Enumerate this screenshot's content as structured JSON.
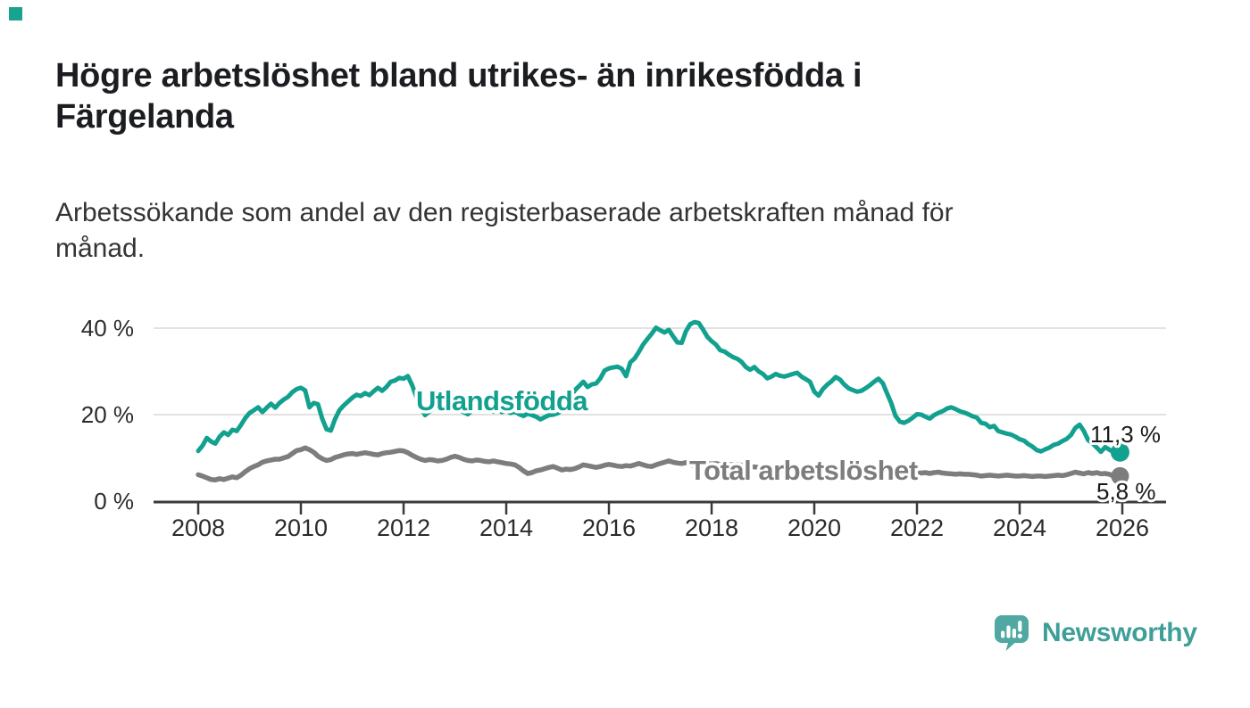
{
  "corner_mark": {
    "color": "#17a38e"
  },
  "title": {
    "text": "Högre arbetslöshet bland utrikes- än inrikesfödda i Färgelanda",
    "line1": "Högre arbetslöshet bland utrikes- än inrikesfödda i",
    "line2": "Färgelanda"
  },
  "subtitle": {
    "text": "Arbetssökande som andel av den registerbaserade arbetskraften månad för månad.",
    "line1": "Arbetssökande som andel av den registerbaserade arbetskraften månad för",
    "line2": "månad."
  },
  "footer": {
    "logo_text": "Newsworthy",
    "logo_color": "#3f9f98",
    "logo_icon": "newsworthy-speech-bubble-bar-chart-icon",
    "icon_color": "#4fa8a1"
  },
  "chart_data": {
    "type": "line",
    "title": "Högre arbetslöshet bland utrikes- än inrikesfödda i Färgelanda",
    "subtitle": "Arbetssökande som andel av den registerbaserade arbetskraften månad för månad.",
    "grid": "horizontal",
    "legend_position": "inline-labels",
    "x": {
      "start_year": 2008,
      "step_months": 1,
      "range": [
        2007.1,
        2026.8
      ],
      "tick_years": [
        2008,
        2010,
        2012,
        2014,
        2016,
        2018,
        2020,
        2022,
        2024,
        2026
      ],
      "tick_labels": [
        "2008",
        "2010",
        "2012",
        "2014",
        "2016",
        "2018",
        "2020",
        "2022",
        "2024",
        "2026"
      ]
    },
    "y": {
      "unit": "%",
      "range": [
        0,
        43
      ],
      "ticks": [
        {
          "value": 0,
          "label": "0 %"
        },
        {
          "value": 20,
          "label": "20 %"
        },
        {
          "value": 40,
          "label": "40 %"
        }
      ],
      "gridline_color": "#d9d9d9",
      "axis_color": "#3a3a3a"
    },
    "series": [
      {
        "name": "Utlandsfödda",
        "color": "#12a08f",
        "end_label": "11,3 %",
        "end_value": 11.3,
        "values": [
          11.6,
          12.8,
          14.6,
          13.8,
          13.3,
          14.9,
          15.9,
          15.3,
          16.5,
          16.2,
          17.6,
          19.2,
          20.4,
          21.0,
          21.7,
          20.6,
          21.6,
          22.5,
          21.6,
          22.7,
          23.5,
          24.1,
          25.2,
          25.9,
          26.2,
          25.6,
          21.7,
          22.7,
          22.4,
          19.0,
          16.6,
          16.3,
          19.0,
          21.0,
          22.1,
          23.0,
          23.9,
          24.6,
          24.3,
          25.0,
          24.5,
          25.4,
          26.2,
          25.5,
          26.4,
          27.6,
          27.9,
          28.5,
          28.3,
          28.9,
          26.8,
          24.1,
          21.8,
          19.9,
          20.7,
          21.4,
          21.9,
          21.5,
          21.8,
          22.1,
          21.7,
          21.2,
          20.6,
          20.1,
          20.9,
          21.3,
          21.0,
          21.4,
          21.1,
          20.7,
          21.0,
          20.6,
          20.9,
          20.4,
          20.7,
          20.1,
          19.7,
          20.2,
          19.9,
          19.5,
          18.9,
          19.4,
          19.9,
          20.0,
          20.3,
          20.9,
          21.8,
          23.8,
          25.6,
          26.6,
          27.6,
          26.4,
          27.0,
          27.2,
          28.4,
          30.2,
          30.7,
          30.9,
          31.1,
          30.6,
          28.9,
          32.1,
          33.0,
          34.5,
          36.2,
          37.5,
          38.7,
          40.1,
          39.5,
          39.0,
          39.6,
          38.1,
          36.7,
          36.6,
          39.3,
          40.9,
          41.4,
          41.2,
          39.7,
          38.0,
          37.0,
          36.2,
          34.9,
          34.6,
          33.9,
          33.3,
          32.9,
          32.2,
          31.0,
          30.4,
          31.0,
          30.0,
          29.4,
          28.4,
          28.8,
          29.4,
          29.0,
          28.8,
          29.1,
          29.4,
          29.7,
          28.8,
          28.2,
          27.6,
          25.3,
          24.4,
          25.9,
          26.9,
          27.7,
          28.7,
          28.1,
          27.0,
          26.1,
          25.7,
          25.3,
          25.5,
          26.1,
          26.8,
          27.6,
          28.3,
          27.3,
          24.9,
          22.6,
          19.7,
          18.4,
          18.1,
          18.6,
          19.3,
          20.1,
          20.0,
          19.5,
          19.1,
          19.9,
          20.4,
          20.8,
          21.4,
          21.7,
          21.3,
          20.8,
          20.5,
          20.1,
          19.6,
          19.3,
          18.1,
          17.9,
          17.1,
          17.4,
          16.2,
          15.9,
          15.6,
          15.4,
          14.9,
          14.3,
          14.0,
          13.2,
          12.6,
          11.8,
          11.5,
          12.0,
          12.4,
          13.0,
          13.3,
          13.9,
          14.4,
          15.3,
          16.9,
          17.7,
          16.2,
          14.1,
          13.4,
          12.4,
          11.4,
          12.5,
          11.9,
          11.3
        ]
      },
      {
        "name": "Total arbetslöshet",
        "color": "#7d7d7d",
        "end_label": "5,8 %",
        "end_value": 5.8,
        "values": [
          6.1,
          5.8,
          5.4,
          5.0,
          4.9,
          5.2,
          5.0,
          5.3,
          5.6,
          5.4,
          6.0,
          6.8,
          7.5,
          8.0,
          8.4,
          9.0,
          9.3,
          9.5,
          9.7,
          9.7,
          10.0,
          10.3,
          11.0,
          11.7,
          11.9,
          12.3,
          11.9,
          11.3,
          10.4,
          9.8,
          9.4,
          9.6,
          10.1,
          10.4,
          10.7,
          10.9,
          11.0,
          10.8,
          11.0,
          11.2,
          11.0,
          10.8,
          10.7,
          11.0,
          11.2,
          11.3,
          11.5,
          11.7,
          11.6,
          11.2,
          10.6,
          10.1,
          9.7,
          9.4,
          9.6,
          9.5,
          9.3,
          9.4,
          9.7,
          10.1,
          10.4,
          10.1,
          9.7,
          9.4,
          9.3,
          9.5,
          9.4,
          9.2,
          9.1,
          9.3,
          9.1,
          8.9,
          8.7,
          8.6,
          8.4,
          7.8,
          7.0,
          6.4,
          6.6,
          7.0,
          7.2,
          7.5,
          7.8,
          8.0,
          7.6,
          7.2,
          7.4,
          7.3,
          7.5,
          7.9,
          8.4,
          8.2,
          8.0,
          7.8,
          8.0,
          8.3,
          8.5,
          8.3,
          8.1,
          8.0,
          8.2,
          8.1,
          8.4,
          8.7,
          8.4,
          8.1,
          8.0,
          8.4,
          8.7,
          9.0,
          9.3,
          9.0,
          8.8,
          8.7,
          8.9,
          8.6,
          8.1,
          8.2,
          8.5,
          8.7,
          8.6,
          8.7,
          8.5,
          8.4,
          8.5,
          8.4,
          8.5,
          8.3,
          8.2,
          8.0,
          7.9,
          7.8,
          7.7,
          7.5,
          7.4,
          7.3,
          7.2,
          7.1,
          7.0,
          7.0,
          6.9,
          6.9,
          7.0,
          7.0,
          7.1,
          7.2,
          7.5,
          7.8,
          8.0,
          8.1,
          8.0,
          7.9,
          7.8,
          7.6,
          7.4,
          7.3,
          7.2,
          7.1,
          7.0,
          6.9,
          6.8,
          6.7,
          6.5,
          6.4,
          6.6,
          6.8,
          6.9,
          6.7,
          6.6,
          6.5,
          6.6,
          6.4,
          6.6,
          6.7,
          6.5,
          6.4,
          6.3,
          6.2,
          6.3,
          6.2,
          6.2,
          6.1,
          6.0,
          5.8,
          5.9,
          6.0,
          5.9,
          5.8,
          5.9,
          6.0,
          5.9,
          5.8,
          5.8,
          5.9,
          5.8,
          5.7,
          5.8,
          5.8,
          5.7,
          5.8,
          5.9,
          6.0,
          5.9,
          6.1,
          6.4,
          6.7,
          6.5,
          6.3,
          6.6,
          6.4,
          6.6,
          6.3,
          6.4,
          6.2,
          5.8
        ]
      }
    ]
  }
}
